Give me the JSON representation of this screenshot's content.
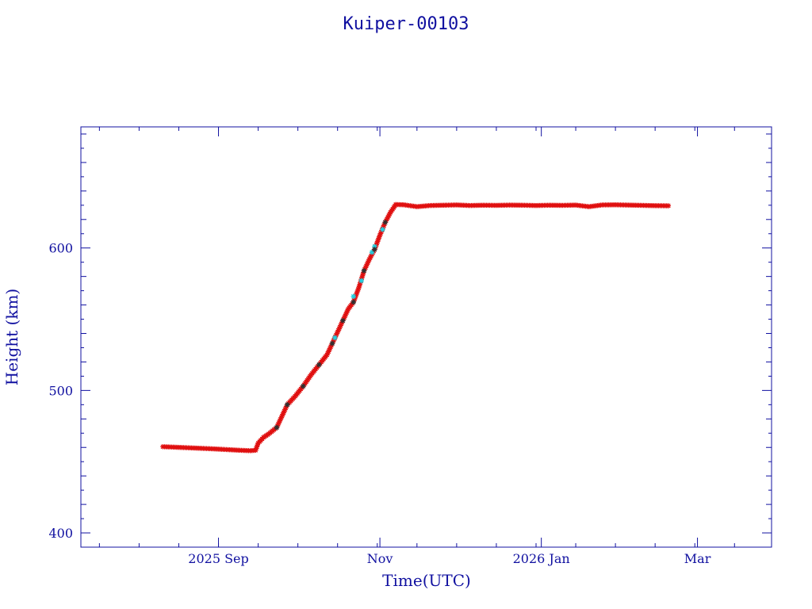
{
  "chart_data": {
    "type": "scatter",
    "title": "Kuiper-00103",
    "xlabel": "Time(UTC)",
    "ylabel": "Height (km)",
    "x_range": [
      "2025-07-11",
      "2026-03-29"
    ],
    "ylim": [
      390,
      685
    ],
    "x_ticks": [
      {
        "label": "2025 Sep",
        "date": "2025-09-01"
      },
      {
        "label": "Nov",
        "date": "2025-11-01"
      },
      {
        "label": "2026 Jan",
        "date": "2026-01-01"
      },
      {
        "label": "Mar",
        "date": "2026-03-01"
      }
    ],
    "y_ticks": [
      400,
      500,
      600
    ],
    "grid": false,
    "legend": "none",
    "colors": {
      "frame": "#1010a0",
      "primary_marker": "#e01010",
      "secondary_marker": "#20d0e0",
      "dark_marker": "#303030"
    },
    "series": [
      {
        "marker_color": "#e01010",
        "points": [
          [
            "2025-08-11",
            460.5
          ],
          [
            "2025-08-15",
            460.2
          ],
          [
            "2025-08-20",
            459.8
          ],
          [
            "2025-08-25",
            459.4
          ],
          [
            "2025-08-30",
            459.0
          ],
          [
            "2025-09-04",
            458.5
          ],
          [
            "2025-09-09",
            458.0
          ],
          [
            "2025-09-13",
            457.7
          ],
          [
            "2025-09-15",
            458.0
          ],
          [
            "2025-09-16",
            463.0
          ],
          [
            "2025-09-18",
            467.0
          ],
          [
            "2025-09-20",
            469.5
          ],
          [
            "2025-09-23",
            474.0
          ],
          [
            "2025-09-25",
            482.0
          ],
          [
            "2025-09-27",
            490.0
          ],
          [
            "2025-09-30",
            496.0
          ],
          [
            "2025-10-03",
            503.0
          ],
          [
            "2025-10-06",
            511.0
          ],
          [
            "2025-10-09",
            518.0
          ],
          [
            "2025-10-12",
            525.0
          ],
          [
            "2025-10-14",
            533.0
          ],
          [
            "2025-10-16",
            541.0
          ],
          [
            "2025-10-18",
            549.0
          ],
          [
            "2025-10-20",
            557.0
          ],
          [
            "2025-10-22",
            562.0
          ],
          [
            "2025-10-24",
            572.0
          ],
          [
            "2025-10-26",
            584.0
          ],
          [
            "2025-10-28",
            592.0
          ],
          [
            "2025-10-30",
            599.0
          ],
          [
            "2025-11-01",
            609.0
          ],
          [
            "2025-11-03",
            618.0
          ],
          [
            "2025-11-05",
            625.0
          ],
          [
            "2025-11-07",
            630.5
          ],
          [
            "2025-11-10",
            630.3
          ],
          [
            "2025-11-15",
            629.0
          ],
          [
            "2025-11-20",
            629.8
          ],
          [
            "2025-11-25",
            630.0
          ],
          [
            "2025-11-30",
            630.2
          ],
          [
            "2025-12-05",
            629.8
          ],
          [
            "2025-12-10",
            630.0
          ],
          [
            "2025-12-15",
            629.9
          ],
          [
            "2025-12-20",
            630.1
          ],
          [
            "2025-12-25",
            630.0
          ],
          [
            "2025-12-30",
            629.8
          ],
          [
            "2026-01-04",
            630.0
          ],
          [
            "2026-01-09",
            629.9
          ],
          [
            "2026-01-14",
            630.1
          ],
          [
            "2026-01-19",
            629.0
          ],
          [
            "2026-01-24",
            630.2
          ],
          [
            "2026-01-29",
            630.3
          ],
          [
            "2026-02-03",
            630.1
          ],
          [
            "2026-02-08",
            629.9
          ],
          [
            "2026-02-13",
            629.7
          ],
          [
            "2026-02-18",
            629.6
          ]
        ]
      },
      {
        "marker_color": "#20d0e0",
        "points": [
          [
            "2025-10-15",
            537.0
          ],
          [
            "2025-10-22",
            566.0
          ],
          [
            "2025-10-25",
            577.0
          ],
          [
            "2025-10-29",
            597.0
          ],
          [
            "2025-10-30",
            601.0
          ],
          [
            "2025-11-02",
            613.0
          ]
        ]
      }
    ]
  }
}
